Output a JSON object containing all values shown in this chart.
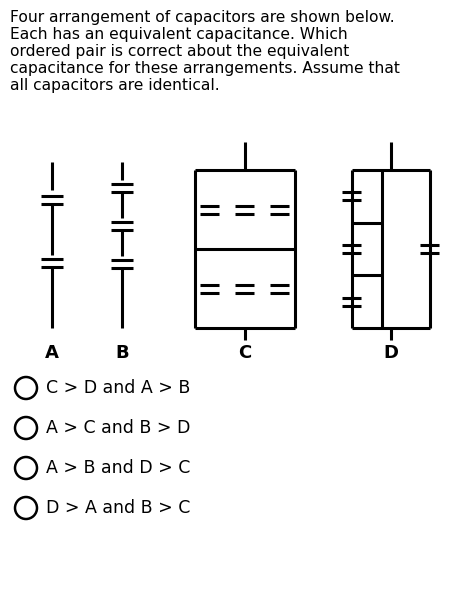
{
  "title_lines": [
    "Four arrangement of capacitors are shown below.",
    "Each has an equivalent capacitance. Which",
    "ordered pair is correct about the equivalent",
    "capacitance for these arrangements. Assume that",
    "all capacitors are identical."
  ],
  "options": [
    "C > D and A > B",
    "A > C and B > D",
    "A > B and D > C",
    "D > A and B > C"
  ],
  "bg_color": "#ffffff",
  "text_color": "#000000",
  "line_color": "#000000",
  "font_size_title": 11.2,
  "font_size_options": 12.5,
  "font_size_labels": 13
}
